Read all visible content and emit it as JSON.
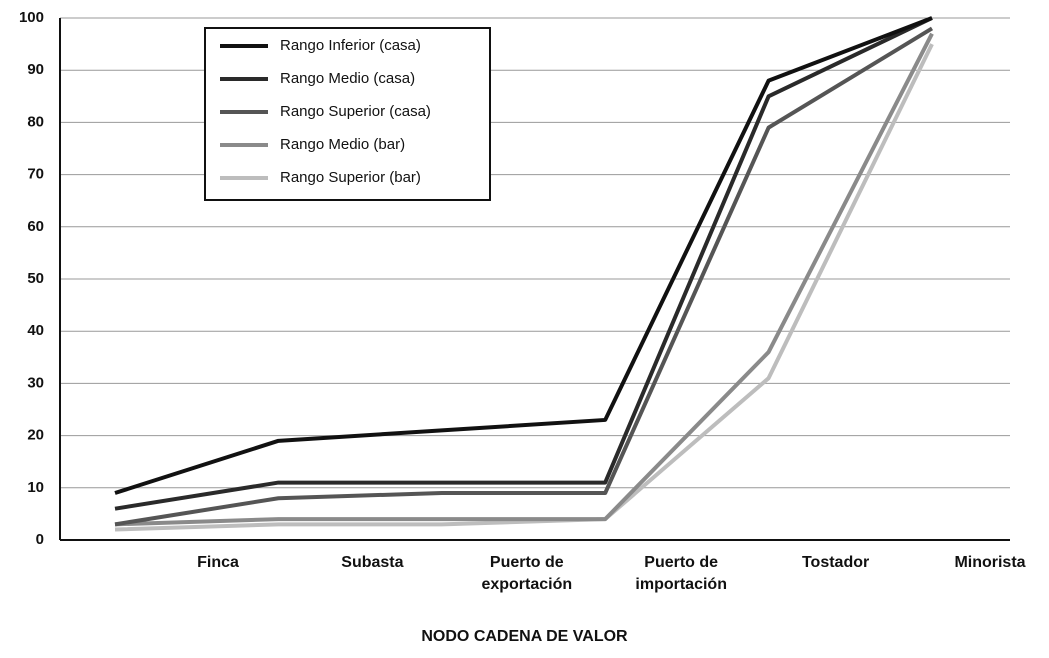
{
  "chart_data": {
    "type": "line",
    "xlabel": "NODO CADENA DE VALOR",
    "categories": [
      "Finca",
      "Subasta",
      "Puerto de exportación",
      "Puerto de importación",
      "Tostador",
      "Minorista"
    ],
    "series": [
      {
        "name": "Rango Inferior (casa)",
        "color": "#111111",
        "values": [
          9,
          19,
          21,
          23,
          88,
          100
        ]
      },
      {
        "name": "Rango Medio (casa)",
        "color": "#2a2a2a",
        "values": [
          6,
          11,
          11,
          11,
          85,
          100
        ]
      },
      {
        "name": "Rango Superior (casa)",
        "color": "#555555",
        "values": [
          3,
          8,
          9,
          9,
          79,
          98
        ]
      },
      {
        "name": "Rango Medio (bar)",
        "color": "#8a8a8a",
        "values": [
          3,
          4,
          4,
          4,
          36,
          97
        ]
      },
      {
        "name": "Rango Superior (bar)",
        "color": "#bdbdbd",
        "values": [
          2,
          3,
          3,
          4,
          31,
          95
        ]
      }
    ],
    "ylim": [
      0,
      100
    ],
    "yticks": [
      0,
      10,
      20,
      30,
      40,
      50,
      60,
      70,
      80,
      90,
      100
    ],
    "grid": true,
    "legend": "upper left"
  }
}
